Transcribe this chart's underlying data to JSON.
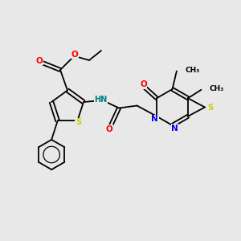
{
  "background_color": "#e8e8e8",
  "bond_color": "#000000",
  "atom_colors": {
    "O": "#ff0000",
    "N": "#0000ee",
    "S": "#cccc00",
    "H": "#008080",
    "C": "#000000"
  },
  "figsize": [
    3.0,
    3.0
  ],
  "dpi": 100,
  "xlim": [
    0,
    10
  ],
  "ylim": [
    0,
    10
  ],
  "lw": 1.3,
  "fs": 6.5
}
